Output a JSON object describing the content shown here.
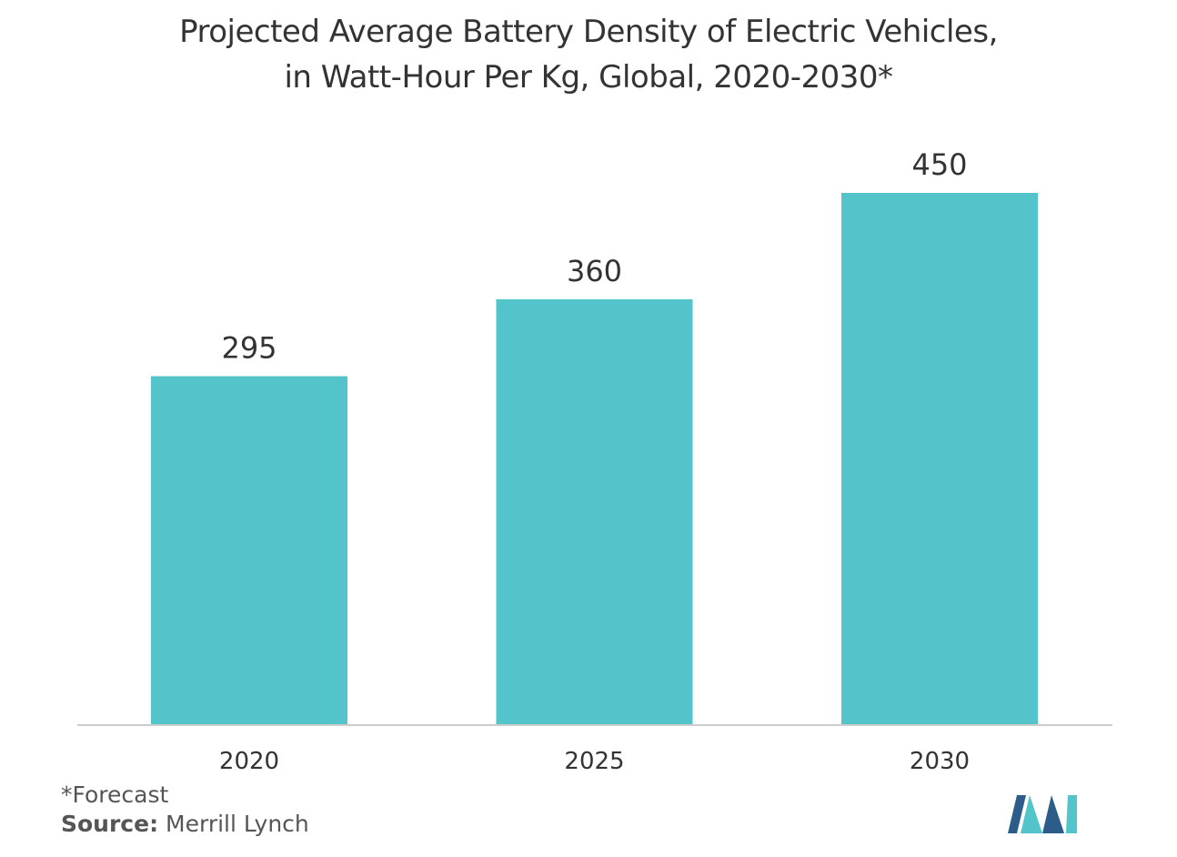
{
  "chart_data": {
    "type": "bar",
    "title_lines": [
      "Projected Average Battery Density of Electric Vehicles,",
      "in Watt-Hour Per Kg, Global, 2020-2030*"
    ],
    "categories": [
      "2020",
      "2025",
      "2030"
    ],
    "values": [
      295,
      360,
      450
    ],
    "value_labels": [
      "295",
      "360",
      "450"
    ],
    "xlabel": "",
    "ylabel": "",
    "ylim": [
      0,
      500
    ],
    "grid": false,
    "legend": "none",
    "bar_color": "#52C4CA",
    "axis_color": "#CCCCCC"
  },
  "footnote": "*Forecast",
  "source": {
    "key": "Source:",
    "value": "Merrill Lynch"
  },
  "logo": {
    "icon": "mordor-intelligence-logo-icon",
    "colors": [
      "#2B5C8A",
      "#52C4CA"
    ]
  }
}
